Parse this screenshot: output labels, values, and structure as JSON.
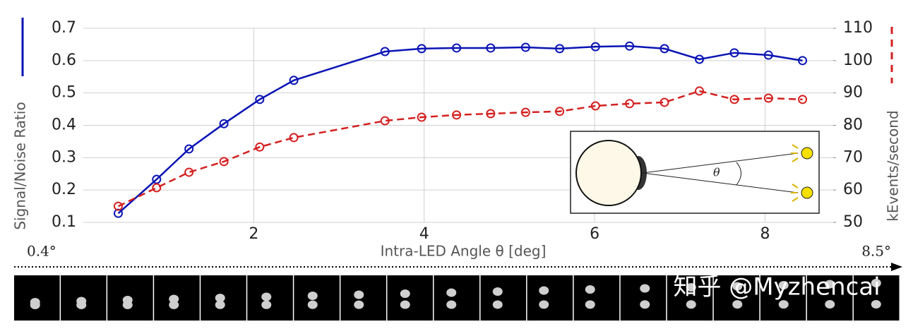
{
  "chart_data": {
    "type": "line",
    "x_label": "Intra-LED Angle θ [deg]",
    "y_label": "Signal/Noise Ratio",
    "y2_label": "kEvents/second",
    "x": [
      0.41,
      0.86,
      1.24,
      1.65,
      2.07,
      2.47,
      3.54,
      3.97,
      4.38,
      4.78,
      5.19,
      5.59,
      6.01,
      6.41,
      6.82,
      7.23,
      7.64,
      8.04,
      8.44
    ],
    "series": [
      {
        "color": "#0a14b4",
        "style": "solid",
        "values": [
          0.128,
          0.233,
          0.327,
          0.405,
          0.48,
          0.539,
          0.628,
          0.637,
          0.639,
          0.639,
          0.641,
          0.637,
          0.643,
          0.645,
          0.637,
          0.604,
          0.624,
          0.617,
          0.6
        ]
      },
      {
        "color": "#d42020",
        "style": "dashed",
        "axis": "y2",
        "values": [
          55.0,
          60.7,
          65.5,
          68.8,
          73.3,
          76.2,
          81.4,
          82.5,
          83.2,
          83.6,
          84.0,
          84.3,
          86.0,
          86.7,
          87.1,
          90.6,
          88.0,
          88.4,
          88.0
        ]
      }
    ],
    "xlim": [
      0,
      8.8
    ],
    "xticks": [
      2,
      4,
      6,
      8
    ],
    "ylim": [
      0.1,
      0.7
    ],
    "yticks": [
      0.1,
      0.2,
      0.3,
      0.4,
      0.5,
      0.6,
      0.7
    ],
    "y2lim": [
      50,
      110
    ],
    "y2ticks": [
      50,
      60,
      70,
      80,
      90,
      100,
      110
    ],
    "grid": true,
    "annotations": {
      "start_angle": "0.4°",
      "end_angle": "8.5°",
      "inset_theta": "θ",
      "watermark": "知乎 @Myzhencai"
    }
  }
}
